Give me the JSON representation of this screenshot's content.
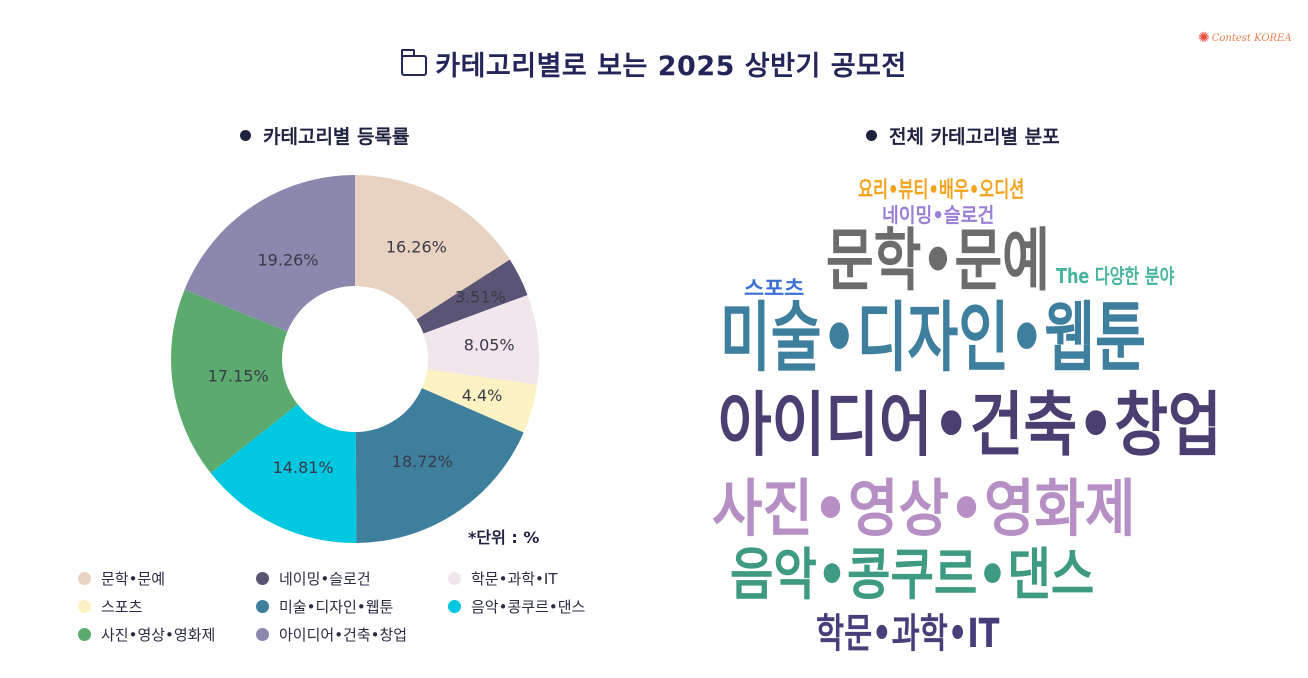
{
  "header": {
    "title": "카테고리별로 보는 2025 상반기 공모전",
    "brand": "Contest KOREA",
    "title_icon": "folder-icon",
    "brand_icon": "sun-icon"
  },
  "colors": {
    "title": "#24265a",
    "segments": [
      "#e8d3c2",
      "#5a5575",
      "#f0e6ec",
      "#fdf2c4",
      "#3f7f9e",
      "#00c8e0",
      "#5cab6e",
      "#8b88ad"
    ]
  },
  "chart_data": [
    {
      "type": "pie",
      "title": "카테고리별 등록률",
      "unit_note": "*단위 : %",
      "categories": [
        "문학•문예",
        "네이밍•슬로건",
        "학문•과학•IT",
        "스포츠",
        "미술•디자인•웹툰",
        "음악•콩쿠르•댄스",
        "사진•영상•영화제",
        "아이디어•건축•창업"
      ],
      "values": [
        16.26,
        3.51,
        8.05,
        4.4,
        18.72,
        14.81,
        17.15,
        19.26
      ],
      "labels": [
        "16.26%",
        "3.51%",
        "8.05%",
        "4.4%",
        "18.72%",
        "14.81%",
        "17.15%",
        "19.26%"
      ],
      "colors": [
        "#e8d3c2",
        "#5a5575",
        "#f0e6ec",
        "#fdf2c4",
        "#3f7f9e",
        "#00c8e0",
        "#5cab6e",
        "#8b88ad"
      ],
      "legend_position": "bottom",
      "donut": true
    },
    {
      "type": "wordcloud",
      "title": "전체 카테고리별 분포",
      "words": [
        {
          "text": "요리•뷰티•배우•오디션",
          "color": "#f2a31b"
        },
        {
          "text": "네이밍•슬로건",
          "color": "#9b7fd6"
        },
        {
          "text": "문학•문예",
          "color": "#6c6c6c"
        },
        {
          "text": "The 다양한 분야",
          "color": "#48b5a0"
        },
        {
          "text": "스포츠",
          "color": "#3b6fd4"
        },
        {
          "text": "미술•디자인•웹툰",
          "color": "#3f7f9e"
        },
        {
          "text": "아이디어•건축•창업",
          "color": "#4b3f72"
        },
        {
          "text": "사진•영상•영화제",
          "color": "#b68fc4"
        },
        {
          "text": "음악•콩쿠르•댄스",
          "color": "#3f9a82"
        },
        {
          "text": "학문•과학•IT",
          "color": "#473f7a"
        }
      ]
    }
  ]
}
